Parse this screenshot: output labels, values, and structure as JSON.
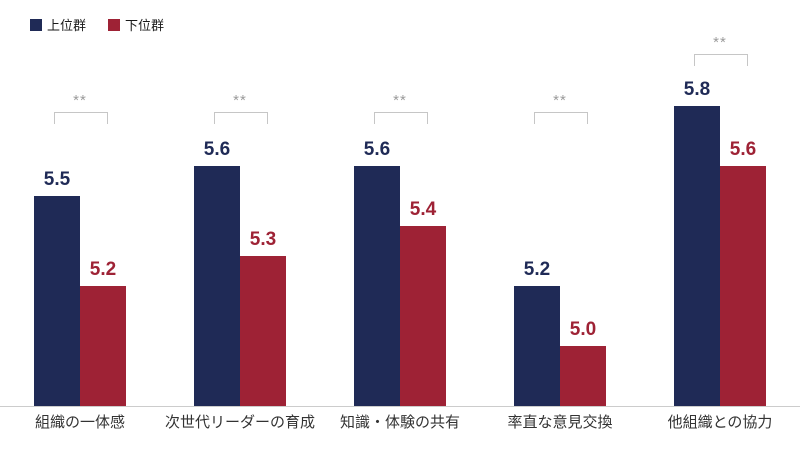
{
  "chart_data": {
    "type": "bar",
    "title": "",
    "categories": [
      "組織の一体感",
      "次世代リーダーの育成",
      "知識・体験の共有",
      "率直な意見交換",
      "他組織との協力"
    ],
    "series": [
      {
        "name": "上位群",
        "color": "#1F2A56",
        "values": [
          5.5,
          5.6,
          5.6,
          5.2,
          5.8
        ]
      },
      {
        "name": "下位群",
        "color": "#9E2235",
        "values": [
          5.2,
          5.3,
          5.4,
          5.0,
          5.6
        ]
      }
    ],
    "significance_labels": [
      "**",
      "**",
      "**",
      "**",
      "**"
    ],
    "ylim": [
      4.8,
      6.0
    ],
    "grid": false,
    "y_axis_visible": false,
    "legend_position": "top-left"
  },
  "colors": {
    "background": "#FFFFFF",
    "axis_line": "#CCCCCC",
    "bracket": "#C6C6C6",
    "significance_text": "#9B9B9B",
    "category_label": "#333333"
  }
}
